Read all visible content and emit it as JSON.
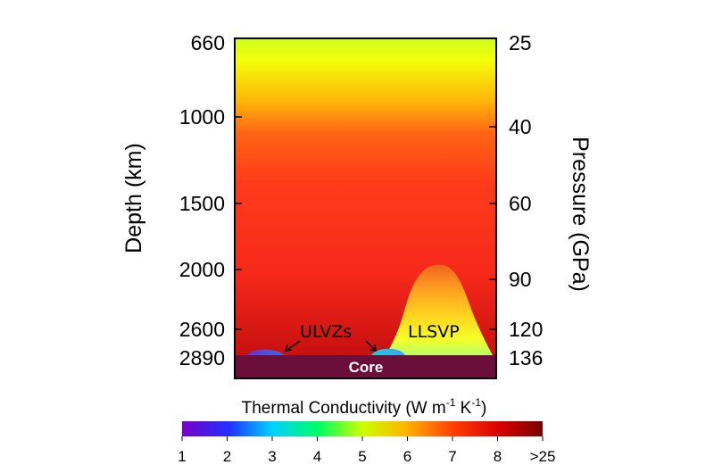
{
  "chart_data": {
    "type": "heatmap",
    "title": "",
    "left_axis": {
      "label": "Depth (km)",
      "ticks": [
        660,
        1000,
        1500,
        2000,
        2600,
        2890
      ],
      "tick_labels": [
        "660",
        "1000",
        "1500",
        "2000",
        "2600",
        "2890"
      ]
    },
    "right_axis": {
      "label": "Pressure (GPa)",
      "ticks": [
        25,
        40,
        60,
        90,
        120,
        136
      ],
      "tick_labels": [
        "25",
        "40",
        "60",
        "90",
        "120",
        "136"
      ]
    },
    "annotations": {
      "ulvz": "ULVZs",
      "llsvp": "LLSVP",
      "core": "Core"
    },
    "colorbar": {
      "title_main": "Thermal Conductivity (W m",
      "title_exp1": "-1",
      "title_mid": " K",
      "title_exp2": "-1",
      "title_end": ")",
      "unit": "W m-1 K-1",
      "ticks": [
        1,
        2,
        3,
        4,
        5,
        6,
        7,
        8,
        25
      ],
      "tick_labels": [
        "1",
        "2",
        "3",
        "4",
        "5",
        "6",
        "7",
        "8",
        ">25"
      ],
      "colors": [
        "#7a00c8",
        "#0050ff",
        "#00e6ff",
        "#00ff40",
        "#e6ff00",
        "#ffa000",
        "#ff3000",
        "#d80000",
        "#780000"
      ]
    },
    "colors": {
      "core": "#6b0f3a",
      "mantle_top": "#d9ff1a",
      "mantle_mid": "#ff3a1a",
      "mantle_bottom": "#d61010",
      "llsvp_top": "#f07a18",
      "llsvp_base": "#dcff40",
      "ulvz_left": "#5d40d8",
      "ulvz_right": "#20c8c8"
    }
  }
}
